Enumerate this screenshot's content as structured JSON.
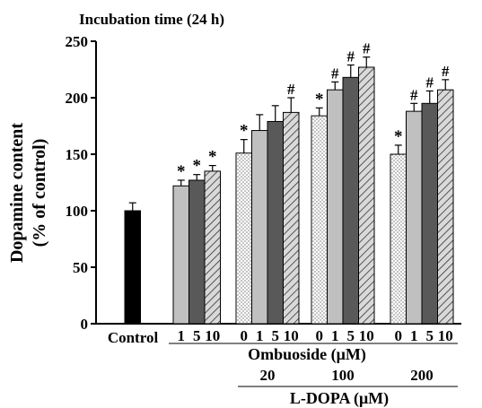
{
  "chart_data": {
    "type": "bar",
    "title": "Incubation time (24 h)",
    "ylabel": [
      "Dopamine content",
      "(% of control)"
    ],
    "ylim": [
      0,
      250
    ],
    "yticks": [
      0,
      50,
      100,
      150,
      200,
      250
    ],
    "control": {
      "label": "Control",
      "value": 100,
      "error": 7,
      "sig": ""
    },
    "groups": [
      {
        "ldopa": "",
        "bars": [
          {
            "label": "1",
            "value": 122,
            "error": 5,
            "sig": "*",
            "pattern": "light"
          },
          {
            "label": "5",
            "value": 127,
            "error": 5,
            "sig": "*",
            "pattern": "dark"
          },
          {
            "label": "10",
            "value": 135,
            "error": 5,
            "sig": "*",
            "pattern": "hatch"
          }
        ]
      },
      {
        "ldopa": "20",
        "bars": [
          {
            "label": "0",
            "value": 151,
            "error": 12,
            "sig": "*",
            "pattern": "dots"
          },
          {
            "label": "1",
            "value": 171,
            "error": 14,
            "sig": "",
            "pattern": "light"
          },
          {
            "label": "5",
            "value": 179,
            "error": 14,
            "sig": "",
            "pattern": "dark"
          },
          {
            "label": "10",
            "value": 187,
            "error": 13,
            "sig": "#",
            "pattern": "hatch"
          }
        ]
      },
      {
        "ldopa": "100",
        "bars": [
          {
            "label": "0",
            "value": 184,
            "error": 7,
            "sig": "*",
            "pattern": "dots"
          },
          {
            "label": "1",
            "value": 207,
            "error": 7,
            "sig": "#",
            "pattern": "light"
          },
          {
            "label": "5",
            "value": 218,
            "error": 11,
            "sig": "#",
            "pattern": "dark"
          },
          {
            "label": "10",
            "value": 227,
            "error": 9,
            "sig": "#",
            "pattern": "hatch"
          }
        ]
      },
      {
        "ldopa": "200",
        "bars": [
          {
            "label": "0",
            "value": 150,
            "error": 8,
            "sig": "*",
            "pattern": "dots"
          },
          {
            "label": "1",
            "value": 188,
            "error": 7,
            "sig": "#",
            "pattern": "light"
          },
          {
            "label": "5",
            "value": 195,
            "error": 11,
            "sig": "#",
            "pattern": "dark"
          },
          {
            "label": "10",
            "value": 207,
            "error": 9,
            "sig": "#",
            "pattern": "hatch"
          }
        ]
      }
    ],
    "ombuoside_label": "Ombuoside (μM)",
    "ldopa_label": "L-DOPA (μM)",
    "grid": false,
    "legend": "none",
    "colors": {
      "control": "#000000",
      "light": "#c0c0c0",
      "dark": "#595959",
      "hatch_bg": "#d9d9d9",
      "dots_bg": "#ffffff"
    }
  }
}
